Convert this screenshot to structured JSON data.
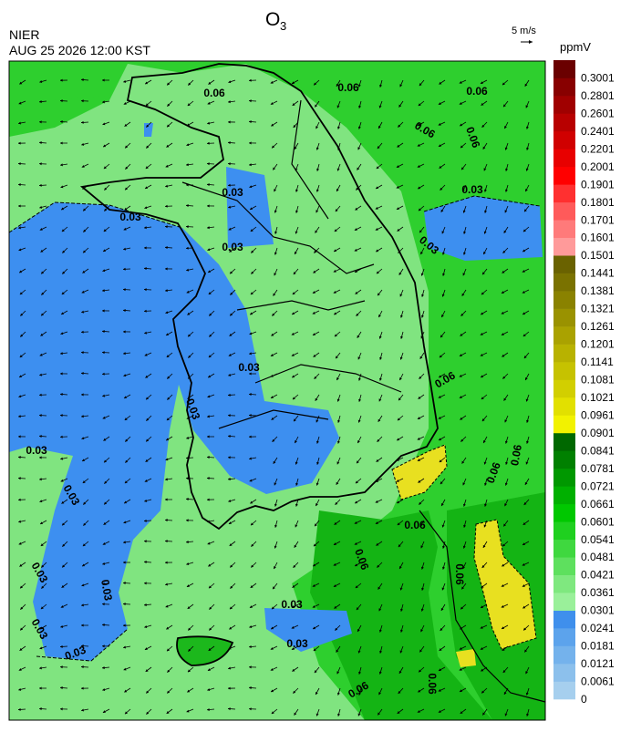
{
  "header": {
    "title": "O",
    "title_subscript": "3",
    "agency": "NIER",
    "datetime": "AUG 25 2026 12:00 KST",
    "wind_scale": "5 m/s",
    "unit": "ppmV"
  },
  "colorbar": {
    "labels": [
      "0",
      "0.0061",
      "0.0121",
      "0.0181",
      "0.0241",
      "0.0301",
      "0.0361",
      "0.0421",
      "0.0481",
      "0.0541",
      "0.0601",
      "0.0661",
      "0.0721",
      "0.0781",
      "0.0841",
      "0.0901",
      "0.0961",
      "0.1021",
      "0.1081",
      "0.1141",
      "0.1201",
      "0.1261",
      "0.1321",
      "0.1381",
      "0.1441",
      "0.1501",
      "0.1601",
      "0.1701",
      "0.1801",
      "0.1901",
      "0.2001",
      "0.2201",
      "0.2401",
      "0.2601",
      "0.2801",
      "0.3001"
    ],
    "colors": [
      "#a6cfee",
      "#8cc0ec",
      "#74b2ec",
      "#5ca3ec",
      "#3f8fec",
      "#9af09a",
      "#7fe87f",
      "#5ee05e",
      "#3fd83f",
      "#1fd01f",
      "#00c800",
      "#00b000",
      "#009800",
      "#008000",
      "#006800",
      "#f2f200",
      "#e2e000",
      "#d2cf00",
      "#c6c200",
      "#b8b200",
      "#aaa200",
      "#9a9200",
      "#8a8200",
      "#7a7200",
      "#6a6200",
      "#ff9a9a",
      "#ff7a7a",
      "#ff5a5a",
      "#ff3030",
      "#ff0000",
      "#e80000",
      "#d00000",
      "#b80000",
      "#a00000",
      "#880000",
      "#6a0000"
    ]
  },
  "map": {
    "contour_labels": [
      "0.06",
      "0.06",
      "0.06",
      "0.06",
      "0.06",
      "0.03",
      "0.03",
      "0.03",
      "0.03",
      "0.03",
      "0.03",
      "0.06",
      "0.03",
      "0.03",
      "0.03",
      "0.03",
      "0.03",
      "0.03",
      "0.03",
      "0.06",
      "0.06",
      "0.06",
      "0.06",
      "0.06",
      "0.03",
      "0.03",
      "0.06",
      "0.06"
    ]
  }
}
